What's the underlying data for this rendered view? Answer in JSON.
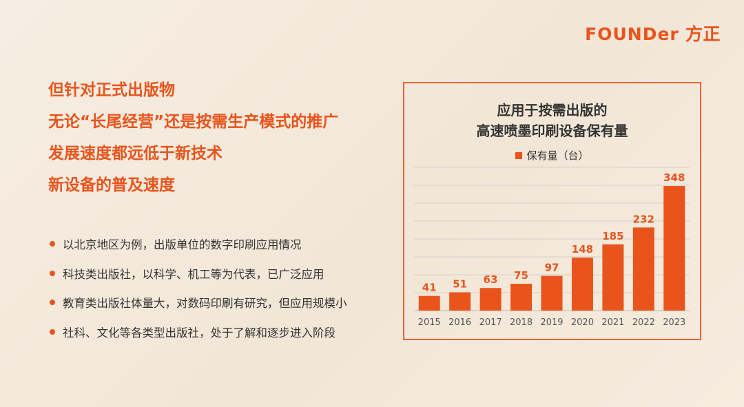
{
  "logo": {
    "latin": "FOUNDer",
    "cn": "方正"
  },
  "headlines": [
    "但针对正式出版物",
    "无论“长尾经营”还是按需生产模式的推广",
    "发展速度都远低于新技术",
    "新设备的普及速度"
  ],
  "bullets": [
    "以北京地区为例，出版单位的数字印刷应用情况",
    "科技类出版社，以科学、机工等为代表，已广泛应用",
    "教育类出版社体量大，对数码印刷有研究，但应用规模小",
    "社科、文化等各类型出版社，处于了解和逐步进入阶段"
  ],
  "colors": {
    "accent": "#e8541c",
    "border": "#e8633a",
    "grid": "#d4d0cb",
    "text": "#333333"
  },
  "chart_data": {
    "type": "bar",
    "title": [
      "应用于按需出版的",
      "高速喷墨印刷设备保有量"
    ],
    "legend": "保有量（台）",
    "categories": [
      "2015",
      "2016",
      "2017",
      "2018",
      "2019",
      "2020",
      "2021",
      "2022",
      "2023"
    ],
    "series": [
      {
        "name": "保有量（台）",
        "values": [
          41,
          51,
          63,
          75,
          97,
          148,
          185,
          232,
          348
        ]
      }
    ],
    "ylim": [
      0,
      400
    ],
    "grid": true,
    "data_labels": true,
    "legend_position": "top"
  }
}
